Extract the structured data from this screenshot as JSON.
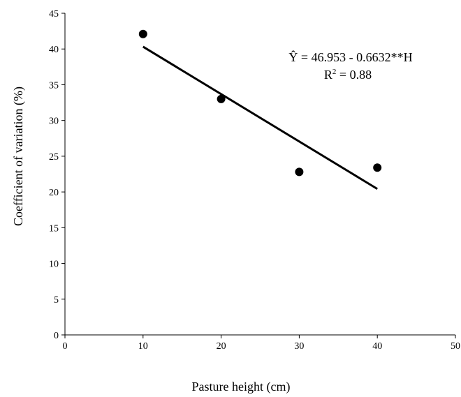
{
  "chart_data": {
    "type": "scatter",
    "xlabel": "Pasture height (cm)",
    "ylabel": "Coefficient of variation (%)",
    "xlim": [
      0,
      50
    ],
    "ylim": [
      0,
      45
    ],
    "x_ticks": [
      0,
      10,
      20,
      30,
      40,
      50
    ],
    "y_ticks": [
      0,
      5,
      10,
      15,
      20,
      25,
      30,
      35,
      40,
      45
    ],
    "grid": false,
    "legend": "none",
    "points": [
      {
        "x": 10,
        "y": 42.1
      },
      {
        "x": 20,
        "y": 33.0
      },
      {
        "x": 30,
        "y": 22.8
      },
      {
        "x": 40,
        "y": 23.4
      }
    ],
    "trendline": {
      "intercept": 46.953,
      "slope": -0.6632,
      "x_range": [
        10,
        40
      ]
    },
    "annotations": {
      "equation": "Ŷ = 46.953 - 0.6632**H",
      "r2_prefix": "R",
      "r2_exponent": "2",
      "r2_value": " = 0.88"
    },
    "colors": {
      "points": "#000000",
      "line": "#000000",
      "axis": "#000000"
    }
  }
}
